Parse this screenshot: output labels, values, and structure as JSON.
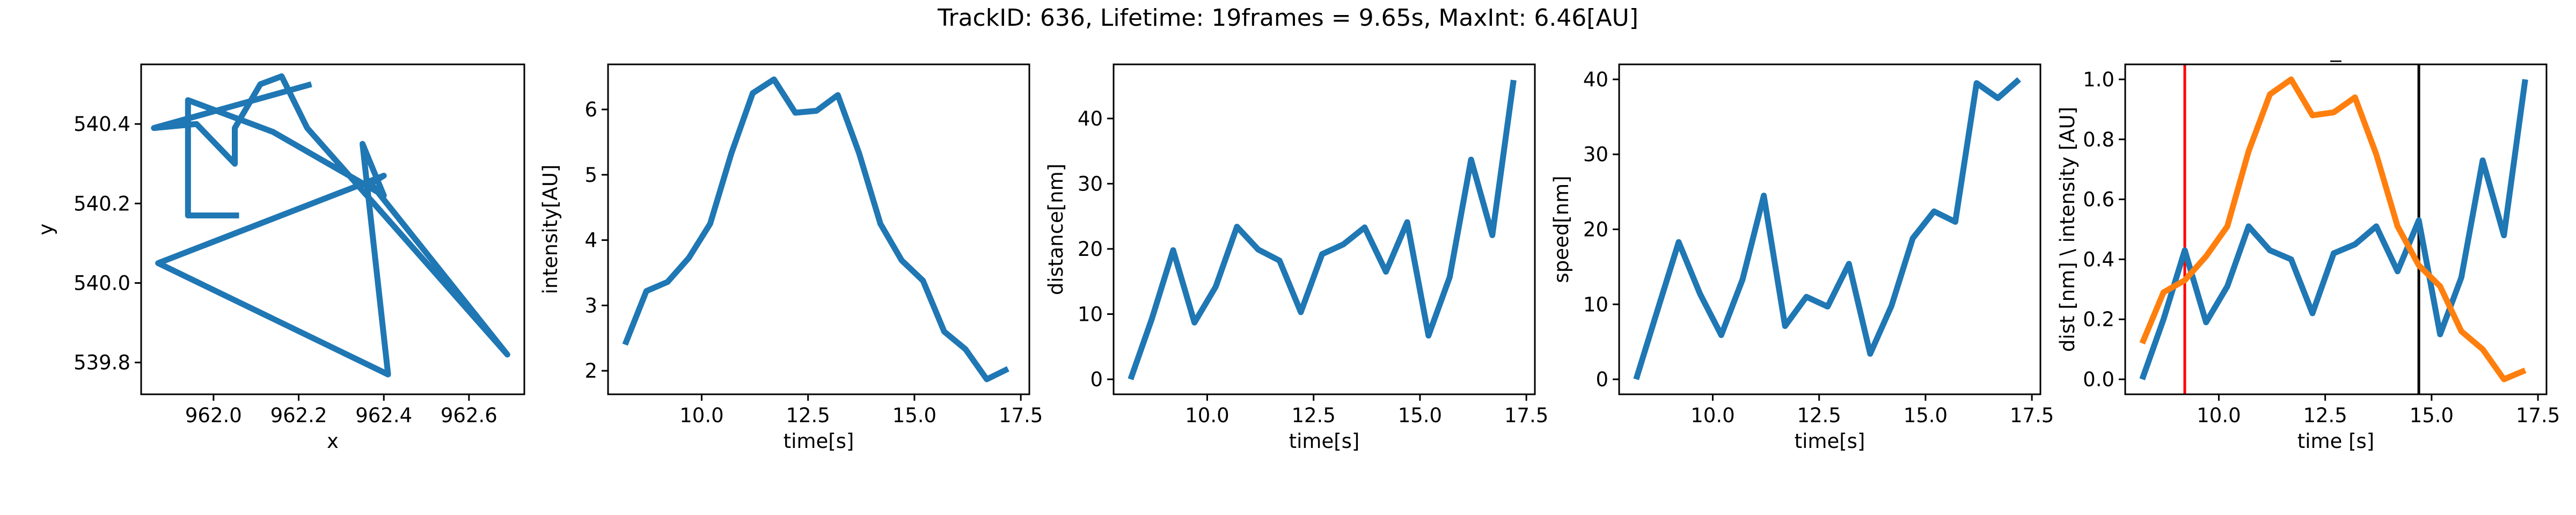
{
  "figure": {
    "suptitle": "TrackID: 636, Lifetime: 19frames = 9.65s, MaxInt: 6.46[AU]"
  },
  "colors": {
    "series1": "#1f77b4",
    "series2": "#ff7f0e",
    "vline_start": "#ff0000",
    "vline_end": "#000000"
  },
  "chart_data": [
    {
      "type": "line",
      "title": "",
      "xlabel": "x",
      "ylabel": "y",
      "xlim": [
        961.83,
        962.73
      ],
      "ylim": [
        539.72,
        540.55
      ],
      "xticks": [
        962.0,
        962.2,
        962.4,
        962.6
      ],
      "xtick_labels": [
        "962.0",
        "962.2",
        "962.4",
        "962.6"
      ],
      "yticks": [
        539.8,
        540.0,
        540.2,
        540.4
      ],
      "ytick_labels": [
        "539.8",
        "540.0",
        "540.2",
        "540.4"
      ],
      "series": [
        {
          "x": [
            962.06,
            961.94,
            961.94,
            962.14,
            962.4,
            962.35,
            962.41,
            961.87,
            962.4,
            962.37,
            962.69,
            962.22,
            962.16,
            962.11,
            962.05,
            962.05,
            961.96,
            961.86,
            962.23
          ],
          "y": [
            540.17,
            540.17,
            540.46,
            540.38,
            540.22,
            540.35,
            539.77,
            540.05,
            540.27,
            540.25,
            539.82,
            540.39,
            540.52,
            540.5,
            540.39,
            540.3,
            540.4,
            540.39,
            540.5
          ]
        }
      ]
    },
    {
      "type": "line",
      "title": "",
      "xlabel": "time[s]",
      "ylabel": "intensity[AU]",
      "xlim": [
        7.8,
        17.7
      ],
      "ylim": [
        1.64,
        6.69
      ],
      "xticks": [
        10.0,
        12.5,
        15.0,
        17.5
      ],
      "xtick_labels": [
        "10.0",
        "12.5",
        "15.0",
        "17.5"
      ],
      "yticks": [
        2,
        3,
        4,
        5,
        6
      ],
      "ytick_labels": [
        "2",
        "3",
        "4",
        "5",
        "6"
      ],
      "series": [
        {
          "x": [
            8.2,
            8.7,
            9.2,
            9.7,
            10.2,
            10.7,
            11.2,
            11.7,
            12.2,
            12.7,
            13.2,
            13.7,
            14.2,
            14.7,
            15.2,
            15.7,
            16.2,
            16.7,
            17.2
          ],
          "y": [
            2.4,
            3.22,
            3.36,
            3.73,
            4.25,
            5.33,
            6.25,
            6.46,
            5.95,
            5.98,
            6.22,
            5.33,
            4.25,
            3.69,
            3.38,
            2.6,
            2.33,
            1.87,
            2.03
          ]
        }
      ]
    },
    {
      "type": "line",
      "title": "",
      "xlabel": "time[s]",
      "ylabel": "distance[nm]",
      "xlim": [
        7.8,
        17.7
      ],
      "ylim": [
        -2.3,
        48.3
      ],
      "xticks": [
        10.0,
        12.5,
        15.0,
        17.5
      ],
      "xtick_labels": [
        "10.0",
        "12.5",
        "15.0",
        "17.5"
      ],
      "yticks": [
        0,
        10,
        20,
        30,
        40
      ],
      "ytick_labels": [
        "0",
        "10",
        "20",
        "30",
        "40"
      ],
      "series": [
        {
          "x": [
            8.2,
            8.7,
            9.2,
            9.7,
            10.2,
            10.7,
            11.2,
            11.7,
            12.2,
            12.7,
            13.2,
            13.7,
            14.2,
            14.7,
            15.2,
            15.7,
            16.2,
            16.7,
            17.2
          ],
          "y": [
            0,
            9.3,
            19.8,
            8.7,
            14.2,
            23.4,
            19.9,
            18.2,
            10.3,
            19.2,
            20.7,
            23.3,
            16.5,
            24.1,
            6.7,
            15.7,
            33.7,
            22.1,
            45.9
          ]
        }
      ]
    },
    {
      "type": "line",
      "title": "",
      "xlabel": "time[s]",
      "ylabel": "speed[nm]",
      "xlim": [
        7.8,
        17.7
      ],
      "ylim": [
        -2.0,
        42.0
      ],
      "xticks": [
        10.0,
        12.5,
        15.0,
        17.5
      ],
      "xtick_labels": [
        "10.0",
        "12.5",
        "15.0",
        "17.5"
      ],
      "yticks": [
        0,
        10,
        20,
        30,
        40
      ],
      "ytick_labels": [
        "0",
        "10",
        "20",
        "30",
        "40"
      ],
      "series": [
        {
          "x": [
            8.2,
            8.7,
            9.2,
            9.7,
            10.2,
            10.7,
            11.2,
            11.7,
            12.2,
            12.7,
            13.2,
            13.7,
            14.2,
            14.7,
            15.2,
            15.7,
            16.2,
            16.7,
            17.2
          ],
          "y": [
            0,
            9.2,
            18.3,
            11.4,
            5.9,
            13.3,
            24.5,
            7.1,
            11.0,
            9.7,
            15.4,
            3.4,
            9.8,
            18.8,
            22.4,
            21.0,
            39.5,
            37.5,
            40.0
          ]
        }
      ]
    },
    {
      "type": "line",
      "title": "_",
      "xlabel": "time [s]",
      "ylabel": "dist [nm] \\ intensity [AU]",
      "xlim": [
        7.8,
        17.7
      ],
      "ylim": [
        -0.05,
        1.05
      ],
      "xticks": [
        10.0,
        12.5,
        15.0,
        17.5
      ],
      "xtick_labels": [
        "10.0",
        "12.5",
        "15.0",
        "17.5"
      ],
      "yticks": [
        0.0,
        0.2,
        0.4,
        0.6,
        0.8,
        1.0
      ],
      "ytick_labels": [
        "0.0",
        "0.2",
        "0.4",
        "0.6",
        "0.8",
        "1.0"
      ],
      "vlines": [
        {
          "x": 9.2,
          "color": "#ff0000"
        },
        {
          "x": 14.7,
          "color": "#000000"
        }
      ],
      "series": [
        {
          "color": "#1f77b4",
          "x": [
            8.2,
            8.7,
            9.2,
            9.7,
            10.2,
            10.7,
            11.2,
            11.7,
            12.2,
            12.7,
            13.2,
            13.7,
            14.2,
            14.7,
            15.2,
            15.7,
            16.2,
            16.7,
            17.2
          ],
          "y": [
            0,
            0.2,
            0.43,
            0.19,
            0.31,
            0.51,
            0.43,
            0.4,
            0.22,
            0.42,
            0.45,
            0.51,
            0.36,
            0.53,
            0.15,
            0.34,
            0.73,
            0.48,
            1.0
          ]
        },
        {
          "color": "#ff7f0e",
          "x": [
            8.2,
            8.7,
            9.2,
            9.7,
            10.2,
            10.7,
            11.2,
            11.7,
            12.2,
            12.7,
            13.2,
            13.7,
            14.2,
            14.7,
            15.2,
            15.7,
            16.2,
            16.7,
            17.2
          ],
          "y": [
            0.12,
            0.29,
            0.33,
            0.41,
            0.51,
            0.76,
            0.95,
            1.0,
            0.88,
            0.89,
            0.94,
            0.75,
            0.51,
            0.38,
            0.31,
            0.16,
            0.1,
            0.0,
            0.03
          ]
        }
      ]
    }
  ]
}
